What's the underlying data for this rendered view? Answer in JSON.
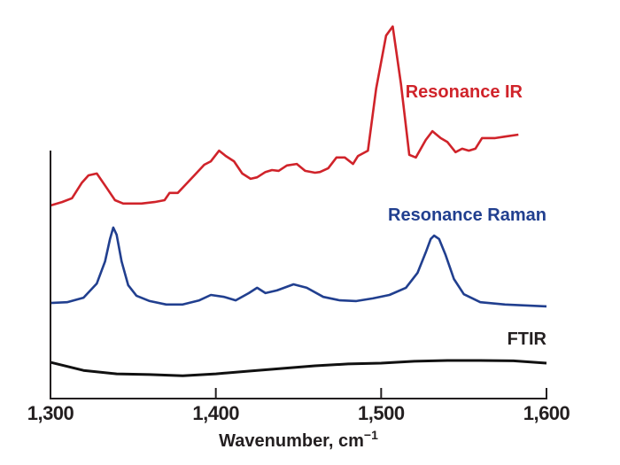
{
  "chart_data": {
    "type": "line",
    "xlabel": "Wavenumber, cm",
    "xlabel_superscript": "−1",
    "ylabel": "",
    "xlim": [
      1300,
      1600
    ],
    "ylim": [
      0,
      100
    ],
    "y_ticks_shown": false,
    "grid": false,
    "x_ticks": [
      1300,
      1400,
      1500,
      1600
    ],
    "x_tick_labels": [
      "1,300",
      "1,400",
      "1,500",
      "1,600"
    ],
    "series": [
      {
        "name": "Resonance IR",
        "color": "#d0232a",
        "x": [
          1300,
          1307,
          1313,
          1319,
          1323,
          1328,
          1334,
          1339,
          1344,
          1355,
          1363,
          1369,
          1372,
          1377,
          1382,
          1387,
          1393,
          1397,
          1402,
          1406,
          1411,
          1416,
          1421,
          1425,
          1430,
          1434,
          1438,
          1443,
          1449,
          1454,
          1460,
          1463,
          1468,
          1473,
          1478,
          1483,
          1486,
          1492,
          1497,
          1503,
          1507,
          1512,
          1517,
          1521,
          1527,
          1531,
          1536,
          1540,
          1545,
          1549,
          1553,
          1557,
          1561,
          1569,
          1575,
          1583
        ],
        "y": [
          50.7,
          51.6,
          52.6,
          56.7,
          58.6,
          59.1,
          55.3,
          52.1,
          51.2,
          51.2,
          51.6,
          52.1,
          54,
          54,
          56.3,
          58.6,
          61.4,
          62.3,
          65.1,
          63.7,
          62.3,
          59.1,
          57.7,
          58.1,
          59.5,
          60,
          59.8,
          61.2,
          61.6,
          59.8,
          59.3,
          59.5,
          60.5,
          63.3,
          63.3,
          61.6,
          63.7,
          65.1,
          81.4,
          95.3,
          97.7,
          82.6,
          64,
          63.3,
          67.9,
          70.2,
          68.4,
          67.4,
          64.7,
          65.6,
          65.1,
          65.6,
          68.4,
          68.4,
          68.8,
          69.3
        ]
      },
      {
        "name": "Resonance Raman",
        "color": "#213f8f",
        "x": [
          1300,
          1310,
          1320,
          1328,
          1333,
          1336,
          1338,
          1340,
          1343,
          1347,
          1352,
          1360,
          1370,
          1380,
          1390,
          1397,
          1405,
          1412,
          1420,
          1425,
          1430,
          1437,
          1447,
          1455,
          1465,
          1475,
          1485,
          1495,
          1505,
          1515,
          1522,
          1527,
          1530,
          1532,
          1535,
          1539,
          1544,
          1550,
          1560,
          1575,
          1600
        ],
        "y": [
          25.1,
          25.3,
          26.5,
          30.2,
          36,
          41.9,
          44.9,
          43,
          36,
          29.8,
          27,
          25.6,
          24.7,
          24.7,
          25.8,
          27.2,
          26.7,
          25.8,
          27.7,
          29.1,
          27.7,
          28.4,
          30,
          29.1,
          26.7,
          25.8,
          25.6,
          26.3,
          27.2,
          29.1,
          33,
          38.4,
          41.9,
          42.8,
          41.9,
          37.7,
          31.4,
          27.4,
          25.3,
          24.7,
          24.2
        ]
      },
      {
        "name": "FTIR",
        "color": "#111111",
        "x": [
          1300,
          1320,
          1340,
          1360,
          1380,
          1400,
          1420,
          1440,
          1460,
          1480,
          1500,
          1520,
          1540,
          1560,
          1580,
          1600
        ],
        "y": [
          9.5,
          7.4,
          6.5,
          6.3,
          6,
          6.5,
          7.2,
          7.9,
          8.6,
          9.1,
          9.3,
          9.8,
          10,
          10,
          9.9,
          9.3
        ]
      }
    ]
  }
}
